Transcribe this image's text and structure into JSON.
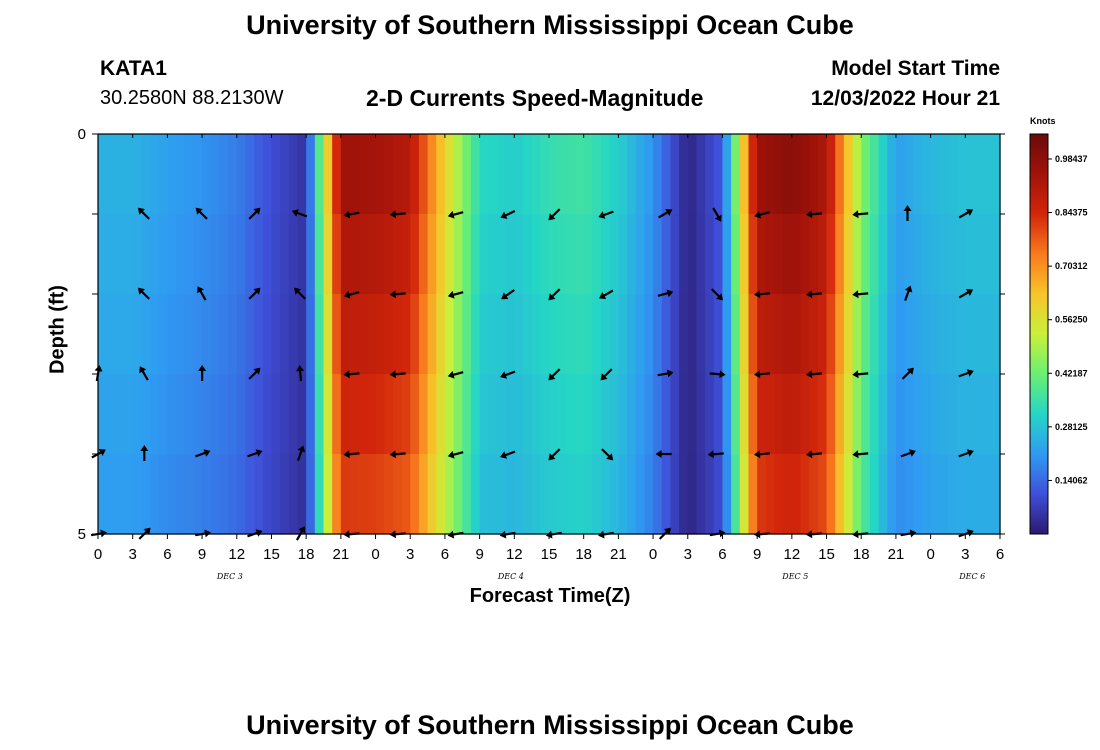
{
  "header": {
    "title": "University of Southern Mississippi Ocean Cube",
    "station": "KATA1",
    "location": "30.2580N  88.2130W",
    "plot_title": "2-D Currents Speed-Magnitude",
    "model_start_label": "Model Start Time",
    "model_start_value": "12/03/2022 Hour 21"
  },
  "footer": {
    "title_repeat": "University of Southern Mississippi Ocean Cube"
  },
  "chart_data": {
    "type": "heatmap",
    "title": "2-D Currents Speed-Magnitude",
    "xlabel": "Forecast Time(Z)",
    "ylabel": "Depth (ft)",
    "y_ticks": [
      "0",
      "5"
    ],
    "ylim": [
      0,
      5
    ],
    "x_tick_labels": [
      "0",
      "3",
      "6",
      "9",
      "12",
      "15",
      "18",
      "21",
      "0",
      "3",
      "6",
      "9",
      "12",
      "15",
      "18",
      "21",
      "0",
      "3",
      "6",
      "9",
      "12",
      "15",
      "18",
      "21",
      "0",
      "3",
      "6"
    ],
    "day_labels": [
      {
        "label": "DEC 3",
        "hour_index": 3.8
      },
      {
        "label": "DEC 4",
        "hour_index": 11.9
      },
      {
        "label": "DEC 5",
        "hour_index": 20.1
      },
      {
        "label": "DEC 6",
        "hour_index": 25.2
      }
    ],
    "colorbar": {
      "unit": "Knots",
      "min": 0,
      "max": 1.05,
      "tick_labels": [
        "0.98437",
        "0.84375",
        "0.70312",
        "0.56250",
        "0.42187",
        "0.28125",
        "0.14062"
      ],
      "tick_values": [
        0.98437,
        0.84375,
        0.70312,
        0.5625,
        0.42187,
        0.28125,
        0.14062
      ],
      "colors": [
        "#2b1a6e",
        "#3f4fd9",
        "#2f9bf2",
        "#25d6c5",
        "#6bef72",
        "#c9f03a",
        "#f7c52a",
        "#f87a1e",
        "#d2260b",
        "#a1130a",
        "#6b0a0a"
      ]
    },
    "time_steps_hours": [
      0,
      3,
      6,
      9,
      12,
      15,
      18,
      21,
      24,
      27,
      30,
      33,
      36,
      39,
      42,
      45,
      48,
      51,
      54,
      57,
      60,
      63,
      66,
      69,
      72,
      75
    ],
    "depth_levels": 5,
    "speed_by_time": [
      0.25,
      0.25,
      0.22,
      0.2,
      0.17,
      0.1,
      0.05,
      0.95,
      0.94,
      0.9,
      0.6,
      0.32,
      0.3,
      0.34,
      0.36,
      0.3,
      0.2,
      0.02,
      0.12,
      0.95,
      0.99,
      0.92,
      0.45,
      0.22,
      0.26,
      0.28
    ],
    "arrow_columns_hours": [
      0,
      4,
      9,
      13.5,
      17.5,
      22,
      26,
      31,
      35.5,
      39.5,
      44,
      49,
      53.5,
      57.5,
      62,
      66,
      70,
      75
    ],
    "arrow_rows": [
      {
        "depth_index": 1,
        "directions_deg": [
          null,
          315,
          315,
          45,
          290,
          260,
          265,
          255,
          245,
          225,
          250,
          60,
          150,
          255,
          265,
          265,
          0,
          60
        ]
      },
      {
        "depth_index": 2,
        "directions_deg": [
          null,
          315,
          330,
          45,
          315,
          255,
          265,
          255,
          235,
          225,
          240,
          75,
          135,
          265,
          265,
          265,
          20,
          60
        ]
      },
      {
        "depth_index": 3,
        "directions_deg": [
          10,
          330,
          0,
          45,
          355,
          265,
          265,
          255,
          250,
          225,
          225,
          80,
          95,
          265,
          265,
          265,
          45,
          70
        ]
      },
      {
        "depth_index": 4,
        "directions_deg": [
          60,
          0,
          70,
          70,
          20,
          265,
          265,
          255,
          250,
          225,
          135,
          270,
          265,
          265,
          265,
          265,
          70,
          70
        ]
      },
      {
        "depth_index": 5,
        "directions_deg": [
          80,
          45,
          80,
          70,
          30,
          265,
          265,
          260,
          260,
          260,
          260,
          45,
          80,
          265,
          265,
          265,
          80,
          70
        ]
      }
    ]
  }
}
